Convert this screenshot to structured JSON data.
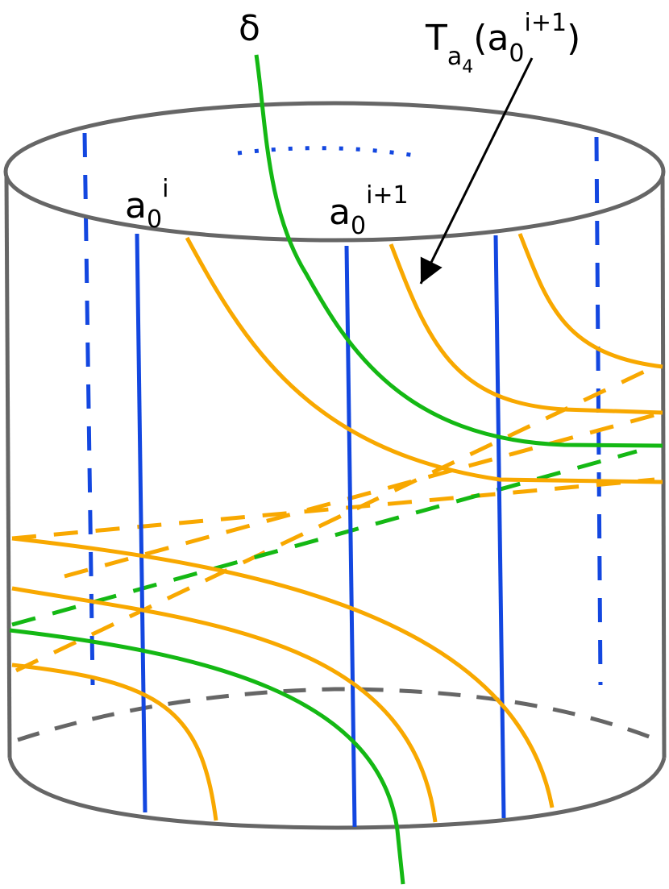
{
  "labels": {
    "delta": "δ",
    "twist": {
      "base": "T",
      "sub": "a",
      "subsub": "4",
      "open": "(a",
      "arg_sub": "0",
      "arg_sup": "i+1",
      "close": ")"
    },
    "a0i": {
      "base": "a",
      "sub": "0",
      "sup": "i"
    },
    "a0i1": {
      "base": "a",
      "sub": "0",
      "sup": "i+1"
    }
  }
}
